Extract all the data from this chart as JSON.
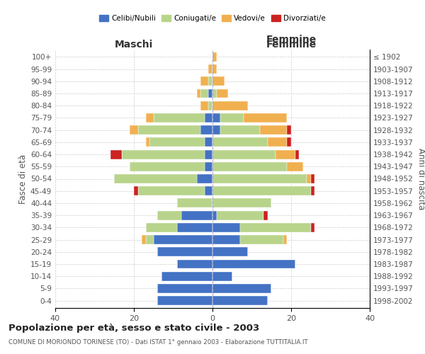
{
  "age_groups": [
    "0-4",
    "5-9",
    "10-14",
    "15-19",
    "20-24",
    "25-29",
    "30-34",
    "35-39",
    "40-44",
    "45-49",
    "50-54",
    "55-59",
    "60-64",
    "65-69",
    "70-74",
    "75-79",
    "80-84",
    "85-89",
    "90-94",
    "95-99",
    "100+"
  ],
  "birth_years": [
    "1998-2002",
    "1993-1997",
    "1988-1992",
    "1983-1987",
    "1978-1982",
    "1973-1977",
    "1968-1972",
    "1963-1967",
    "1958-1962",
    "1953-1957",
    "1948-1952",
    "1943-1947",
    "1938-1942",
    "1933-1937",
    "1928-1932",
    "1923-1927",
    "1918-1922",
    "1913-1917",
    "1908-1912",
    "1903-1907",
    "≤ 1902"
  ],
  "maschi": {
    "celibi": [
      14,
      14,
      13,
      9,
      14,
      15,
      9,
      8,
      0,
      2,
      4,
      2,
      2,
      2,
      3,
      2,
      0,
      1,
      0,
      0,
      0
    ],
    "coniugati": [
      0,
      0,
      0,
      0,
      0,
      2,
      8,
      6,
      9,
      17,
      21,
      19,
      21,
      14,
      16,
      13,
      1,
      2,
      1,
      0,
      0
    ],
    "vedovi": [
      0,
      0,
      0,
      0,
      0,
      1,
      0,
      0,
      0,
      0,
      0,
      0,
      0,
      1,
      2,
      2,
      2,
      1,
      2,
      1,
      0
    ],
    "divorziati": [
      0,
      0,
      0,
      0,
      0,
      0,
      0,
      0,
      0,
      1,
      0,
      0,
      3,
      0,
      0,
      0,
      0,
      0,
      0,
      0,
      0
    ]
  },
  "femmine": {
    "nubili": [
      14,
      15,
      5,
      21,
      9,
      7,
      7,
      1,
      0,
      0,
      0,
      0,
      0,
      0,
      2,
      2,
      0,
      0,
      0,
      0,
      0
    ],
    "coniugate": [
      0,
      0,
      0,
      0,
      0,
      11,
      18,
      12,
      15,
      25,
      24,
      19,
      16,
      14,
      10,
      6,
      0,
      1,
      0,
      0,
      0
    ],
    "vedove": [
      0,
      0,
      0,
      0,
      0,
      1,
      0,
      0,
      0,
      0,
      1,
      4,
      5,
      5,
      7,
      11,
      9,
      3,
      3,
      1,
      1
    ],
    "divorziate": [
      0,
      0,
      0,
      0,
      0,
      0,
      1,
      1,
      0,
      1,
      1,
      0,
      1,
      1,
      1,
      0,
      0,
      0,
      0,
      0,
      0
    ]
  },
  "colors": {
    "celibi_nubili": "#4472c4",
    "coniugati": "#b8d48b",
    "vedovi": "#f0b050",
    "divorziati": "#cc2222"
  },
  "title": "Popolazione per età, sesso e stato civile - 2003",
  "subtitle": "COMUNE DI MORIONDO TORINESE (TO) - Dati ISTAT 1° gennaio 2003 - Elaborazione TUTTITALIA.IT",
  "xlabel_left": "Maschi",
  "xlabel_right": "Femmine",
  "ylabel_left": "Fasce di età",
  "ylabel_right": "Anni di nascita",
  "xlim": 40,
  "background_color": "#ffffff",
  "grid_color": "#cccccc"
}
